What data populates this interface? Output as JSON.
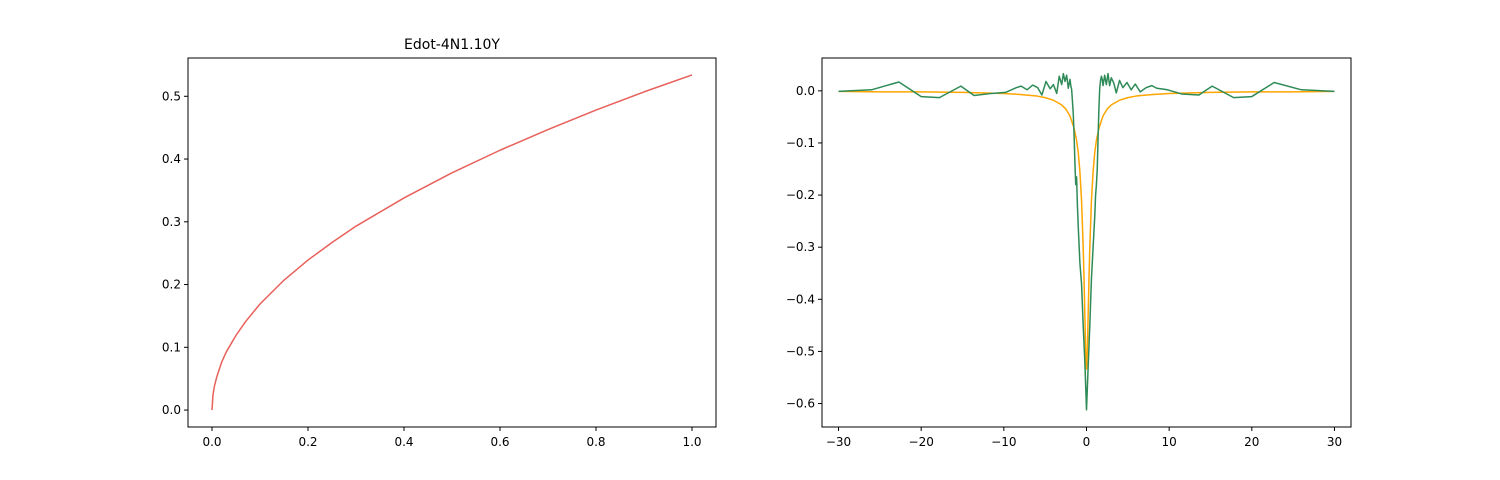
{
  "chart_data": [
    {
      "type": "line",
      "title": "Edot-4N1.10Y",
      "xlabel": "",
      "ylabel": "",
      "xlim": [
        -0.05,
        1.05
      ],
      "ylim": [
        -0.027,
        0.561
      ],
      "xticks": [
        0.0,
        0.2,
        0.4,
        0.6,
        0.8,
        1.0
      ],
      "xtick_labels": [
        "0.0",
        "0.2",
        "0.4",
        "0.6",
        "0.8",
        "1.0"
      ],
      "yticks": [
        0.0,
        0.1,
        0.2,
        0.3,
        0.4,
        0.5
      ],
      "ytick_labels": [
        "0.0",
        "0.1",
        "0.2",
        "0.3",
        "0.4",
        "0.5"
      ],
      "grid": false,
      "legend": "none",
      "series": [
        {
          "color": "#e8605a",
          "x": [
            0.0,
            0.002,
            0.005,
            0.01,
            0.02,
            0.03,
            0.05,
            0.07,
            0.1,
            0.15,
            0.2,
            0.25,
            0.3,
            0.4,
            0.5,
            0.6,
            0.7,
            0.8,
            0.9,
            1.0
          ],
          "y": [
            0.0,
            0.024,
            0.038,
            0.053,
            0.076,
            0.093,
            0.119,
            0.141,
            0.169,
            0.207,
            0.239,
            0.267,
            0.293,
            0.338,
            0.378,
            0.414,
            0.447,
            0.478,
            0.507,
            0.534
          ]
        }
      ]
    },
    {
      "type": "line",
      "title": "",
      "xlabel": "",
      "ylabel": "",
      "xlim": [
        -32.0,
        32.0
      ],
      "ylim": [
        -0.645,
        0.063
      ],
      "xticks": [
        -30,
        -20,
        -10,
        0,
        10,
        20,
        30
      ],
      "xtick_labels": [
        "−30",
        "−20",
        "−10",
        "0",
        "10",
        "20",
        "30"
      ],
      "yticks": [
        0.0,
        -0.1,
        -0.2,
        -0.3,
        -0.4,
        -0.5,
        -0.6
      ],
      "ytick_labels": [
        "0.0",
        "−0.1",
        "−0.2",
        "−0.3",
        "−0.4",
        "−0.5",
        "−0.6"
      ],
      "grid": false,
      "legend": "none",
      "series": [
        {
          "color": "#ffa500",
          "x": [
            -30,
            -25,
            -20,
            -15,
            -10,
            -8,
            -6,
            -5,
            -4,
            -3,
            -2.5,
            -2,
            -1.5,
            -1.2,
            -1,
            -0.8,
            -0.6,
            -0.4,
            -0.3,
            -0.2,
            -0.1,
            0,
            0.1,
            0.2,
            0.3,
            0.4,
            0.6,
            0.8,
            1,
            1.2,
            1.5,
            2,
            2.5,
            3,
            4,
            5,
            6,
            8,
            10,
            15,
            20,
            25,
            30
          ],
          "y": [
            -0.001,
            -0.002,
            -0.002,
            -0.003,
            -0.005,
            -0.007,
            -0.01,
            -0.013,
            -0.018,
            -0.027,
            -0.035,
            -0.048,
            -0.072,
            -0.095,
            -0.118,
            -0.155,
            -0.21,
            -0.3,
            -0.36,
            -0.43,
            -0.5,
            -0.534,
            -0.5,
            -0.43,
            -0.36,
            -0.3,
            -0.21,
            -0.155,
            -0.118,
            -0.095,
            -0.072,
            -0.048,
            -0.035,
            -0.027,
            -0.018,
            -0.013,
            -0.01,
            -0.007,
            -0.005,
            -0.003,
            -0.002,
            -0.002,
            -0.001
          ]
        },
        {
          "color": "#2e8b57",
          "x": [
            -30,
            -26,
            -22.7,
            -20,
            -17.8,
            -15.2,
            -13.6,
            -11.5,
            -9.8,
            -8.5,
            -7.9,
            -7.2,
            -6.5,
            -5.9,
            -5.4,
            -4.9,
            -4.4,
            -4.0,
            -3.6,
            -3.3,
            -3.0,
            -2.8,
            -2.6,
            -2.4,
            -2.2,
            -2.0,
            -1.9,
            -1.8,
            -1.7,
            -1.6,
            -1.5,
            -1.4,
            -1.3,
            -1.2,
            -1.1,
            -1.0,
            -0.8,
            -0.6,
            -0.4,
            -0.2,
            0,
            0.2,
            0.4,
            0.6,
            0.8,
            1.0,
            1.1,
            1.2,
            1.3,
            1.4,
            1.5,
            1.6,
            1.7,
            1.8,
            1.9,
            2.0,
            2.2,
            2.4,
            2.6,
            2.8,
            3.0,
            3.3,
            3.6,
            4.0,
            4.4,
            4.9,
            5.4,
            5.9,
            6.5,
            7.2,
            7.9,
            8.5,
            9.8,
            11.5,
            13.6,
            15.2,
            17.8,
            20,
            22.7,
            26,
            30
          ],
          "y": [
            -0.001,
            0.002,
            0.017,
            -0.011,
            -0.013,
            0.009,
            -0.009,
            -0.005,
            -0.003,
            0.006,
            0.009,
            0.002,
            0.011,
            0.006,
            -0.008,
            0.018,
            0.004,
            0.012,
            -0.005,
            0.028,
            0.012,
            0.033,
            0.018,
            0.03,
            0.005,
            0.022,
            0.01,
            0.003,
            -0.02,
            -0.045,
            -0.085,
            -0.14,
            -0.18,
            -0.165,
            -0.22,
            -0.26,
            -0.33,
            -0.37,
            -0.45,
            -0.52,
            -0.612,
            -0.53,
            -0.45,
            -0.36,
            -0.3,
            -0.24,
            -0.2,
            -0.18,
            -0.15,
            -0.09,
            -0.035,
            0.005,
            0.02,
            0.028,
            0.022,
            0.01,
            0.03,
            0.012,
            0.033,
            0.01,
            0.025,
            0.015,
            -0.004,
            0.02,
            0.006,
            0.016,
            0.002,
            0.013,
            -0.002,
            0.006,
            0.01,
            0.005,
            0.002,
            -0.006,
            -0.008,
            0.009,
            -0.013,
            -0.011,
            0.016,
            0.002,
            -0.001
          ]
        }
      ]
    }
  ]
}
